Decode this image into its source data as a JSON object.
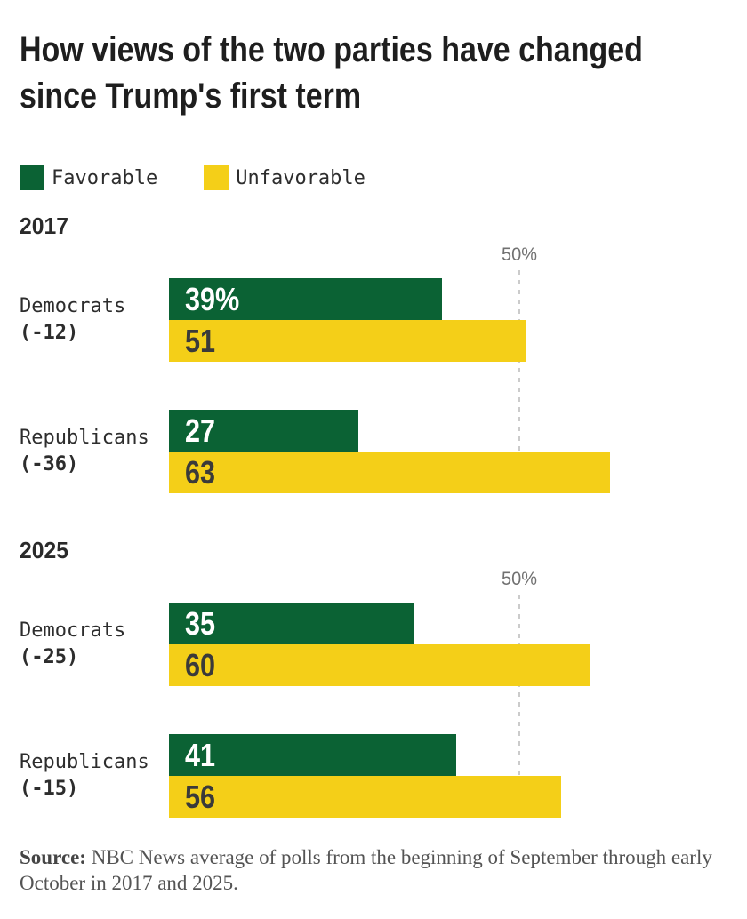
{
  "title_lines": [
    "How views of the two parties have changed",
    "since Trump's first term"
  ],
  "colors": {
    "favorable": "#0b6234",
    "unfavorable": "#f4cf18",
    "gridline": "#cbcbcb",
    "title_text": "#1e1e1e",
    "axis_text": "#717171"
  },
  "chart_data": {
    "type": "bar",
    "orientation": "horizontal",
    "unit": "%",
    "axis_max": 80,
    "reference_line": {
      "value": 50,
      "label": "50%"
    },
    "legend": [
      {
        "label": "Favorable",
        "color": "#0b6234"
      },
      {
        "label": "Unfavorable",
        "color": "#f4cf18"
      }
    ],
    "groups": [
      {
        "year": "2017",
        "rows": [
          {
            "party": "Democrats",
            "change": "(-12)",
            "favorable": 39,
            "unfavorable": 51,
            "favorable_label": "39%",
            "unfavorable_label": "51"
          },
          {
            "party": "Republicans",
            "change": "(-36)",
            "favorable": 27,
            "unfavorable": 63,
            "favorable_label": "27",
            "unfavorable_label": "63"
          }
        ]
      },
      {
        "year": "2025",
        "rows": [
          {
            "party": "Democrats",
            "change": "(-25)",
            "favorable": 35,
            "unfavorable": 60,
            "favorable_label": "35",
            "unfavorable_label": "60"
          },
          {
            "party": "Republicans",
            "change": "(-15)",
            "favorable": 41,
            "unfavorable": 56,
            "favorable_label": "41",
            "unfavorable_label": "56"
          }
        ]
      }
    ]
  },
  "source": {
    "prefix": "Source:",
    "text": " NBC News average of polls from the beginning of September through early October in 2017 and 2025."
  }
}
